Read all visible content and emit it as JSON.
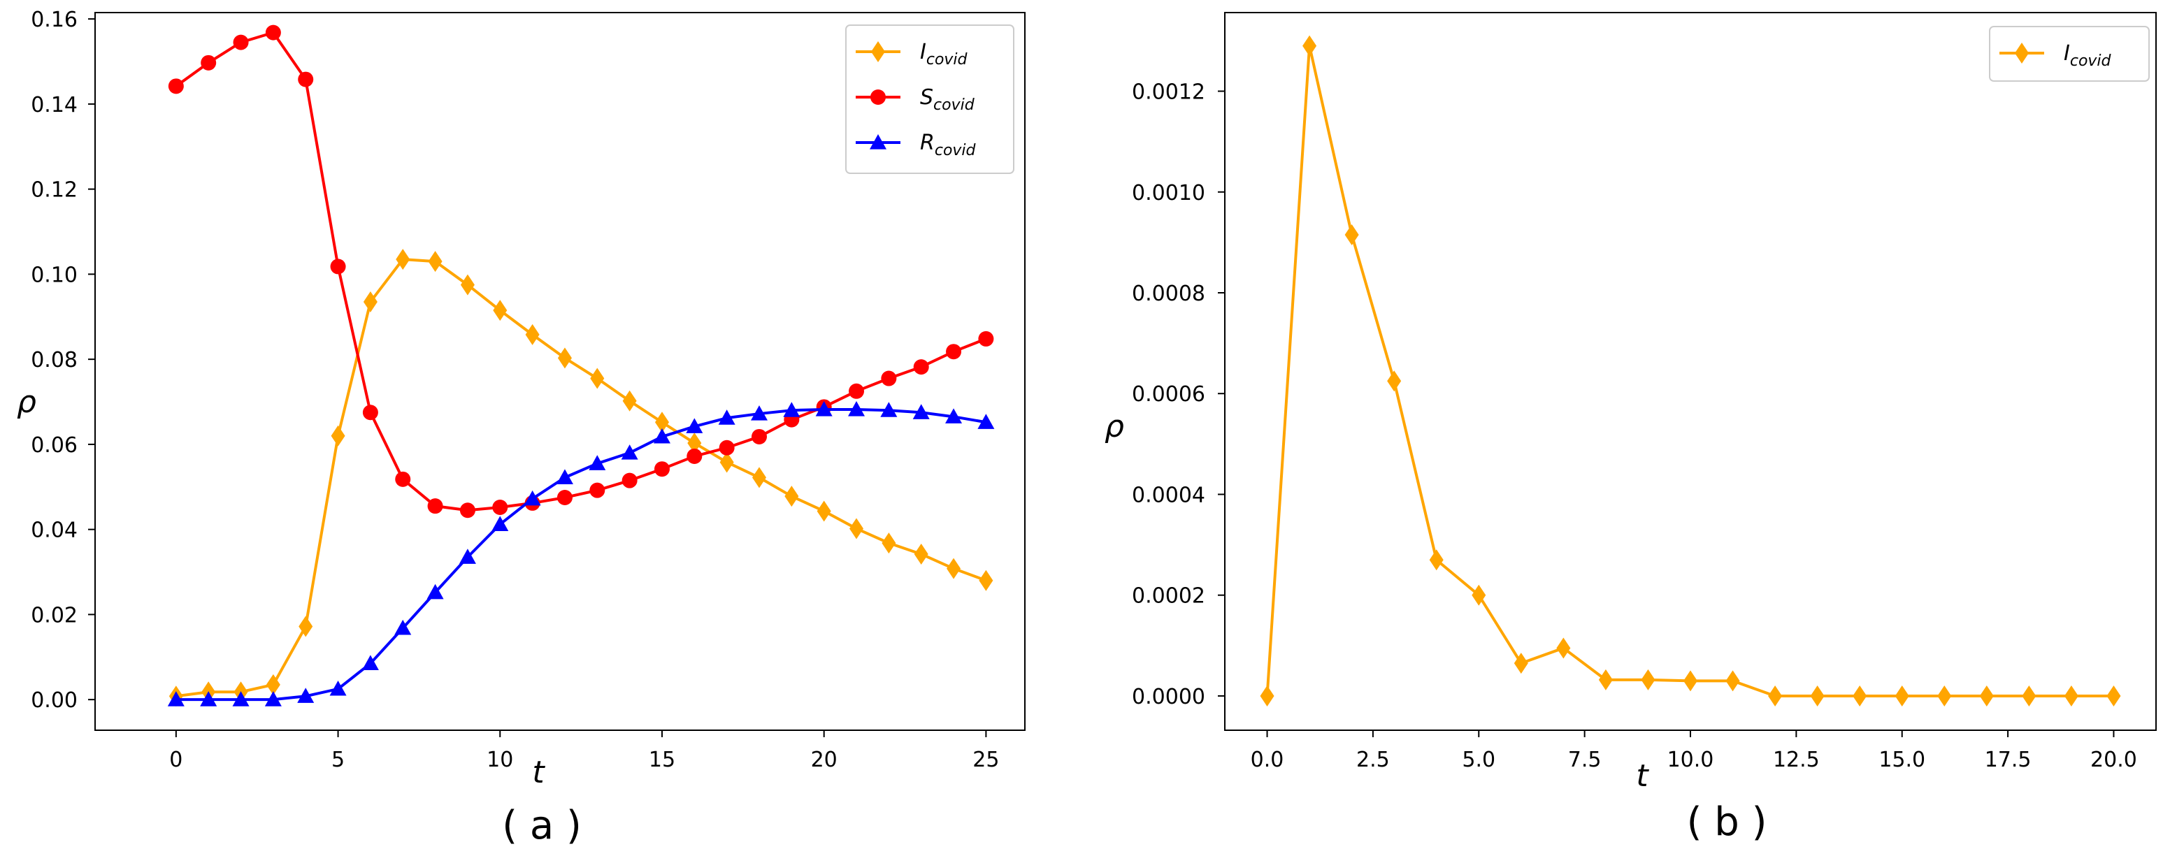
{
  "chart_data": [
    {
      "type": "line",
      "caption": "( a )",
      "xlabel": "t",
      "ylabel": "ρ",
      "xlim": [
        -2.5,
        26.2
      ],
      "ylim": [
        -0.0072,
        0.1615
      ],
      "xticks": [
        0,
        5,
        10,
        15,
        20,
        25
      ],
      "xtick_labels": [
        "0",
        "5",
        "10",
        "15",
        "20",
        "25"
      ],
      "yticks": [
        0.0,
        0.02,
        0.04,
        0.06,
        0.08,
        0.1,
        0.12,
        0.14,
        0.16
      ],
      "ytick_labels": [
        "0.00",
        "0.02",
        "0.04",
        "0.06",
        "0.08",
        "0.10",
        "0.12",
        "0.14",
        "0.16"
      ],
      "legend_position": "top-right",
      "x": [
        0,
        1,
        2,
        3,
        4,
        5,
        6,
        7,
        8,
        9,
        10,
        11,
        12,
        13,
        14,
        15,
        16,
        17,
        18,
        19,
        20,
        21,
        22,
        23,
        24,
        25
      ],
      "series": [
        {
          "name": "I_covid",
          "label_main": "I",
          "label_sub": "covid",
          "color": "#FFA500",
          "marker": "diamond",
          "values": [
            0.0008,
            0.0018,
            0.0018,
            0.0035,
            0.0172,
            0.062,
            0.0935,
            0.1035,
            0.103,
            0.0975,
            0.0915,
            0.0858,
            0.0803,
            0.0755,
            0.0702,
            0.0652,
            0.0603,
            0.0558,
            0.0522,
            0.0478,
            0.0443,
            0.0402,
            0.0368,
            0.0342,
            0.0308,
            0.028
          ]
        },
        {
          "name": "S_covid",
          "label_main": "S",
          "label_sub": "covid",
          "color": "#FF0000",
          "marker": "circle",
          "values": [
            0.1442,
            0.1497,
            0.1545,
            0.1568,
            0.1458,
            0.1018,
            0.0675,
            0.0518,
            0.0455,
            0.0445,
            0.0452,
            0.0462,
            0.0475,
            0.0492,
            0.0515,
            0.0542,
            0.0572,
            0.0592,
            0.0618,
            0.0658,
            0.0688,
            0.0725,
            0.0755,
            0.0782,
            0.0818,
            0.0848
          ]
        },
        {
          "name": "R_covid",
          "label_main": "R",
          "label_sub": "covid",
          "color": "#0000FF",
          "marker": "triangle",
          "values": [
            0.0,
            0.0,
            0.0,
            0.0,
            0.0008,
            0.0025,
            0.0085,
            0.0168,
            0.0252,
            0.0335,
            0.0412,
            0.0472,
            0.0522,
            0.0555,
            0.058,
            0.0618,
            0.0642,
            0.0662,
            0.0672,
            0.068,
            0.0682,
            0.0682,
            0.068,
            0.0675,
            0.0665,
            0.0652
          ]
        }
      ]
    },
    {
      "type": "line",
      "caption": "( b )",
      "xlabel": "t",
      "ylabel": "ρ",
      "xlim": [
        -1.0,
        21.0
      ],
      "ylim": [
        -6.8e-05,
        0.001356
      ],
      "xticks": [
        0,
        2.5,
        5,
        7.5,
        10,
        12.5,
        15,
        17.5,
        20
      ],
      "xtick_labels": [
        "0.0",
        "2.5",
        "5.0",
        "7.5",
        "10.0",
        "12.5",
        "15.0",
        "17.5",
        "20.0"
      ],
      "yticks": [
        0.0,
        0.0002,
        0.0004,
        0.0006,
        0.0008,
        0.001,
        0.0012
      ],
      "ytick_labels": [
        "0.0000",
        "0.0002",
        "0.0004",
        "0.0006",
        "0.0008",
        "0.0010",
        "0.0012"
      ],
      "legend_position": "top-right",
      "x": [
        0,
        1,
        2,
        3,
        4,
        5,
        6,
        7,
        8,
        9,
        10,
        11,
        12,
        13,
        14,
        15,
        16,
        17,
        18,
        19,
        20
      ],
      "series": [
        {
          "name": "I_covid",
          "label_main": "I",
          "label_sub": "covid",
          "color": "#FFA500",
          "marker": "diamond",
          "values": [
            0.0,
            0.00129,
            0.000915,
            0.000625,
            0.00027,
            0.0002,
            6.5e-05,
            9.5e-05,
            3.2e-05,
            3.2e-05,
            3e-05,
            3e-05,
            0.0,
            0.0,
            0.0,
            0.0,
            0.0,
            0.0,
            0.0,
            0.0,
            0.0
          ]
        }
      ]
    }
  ]
}
